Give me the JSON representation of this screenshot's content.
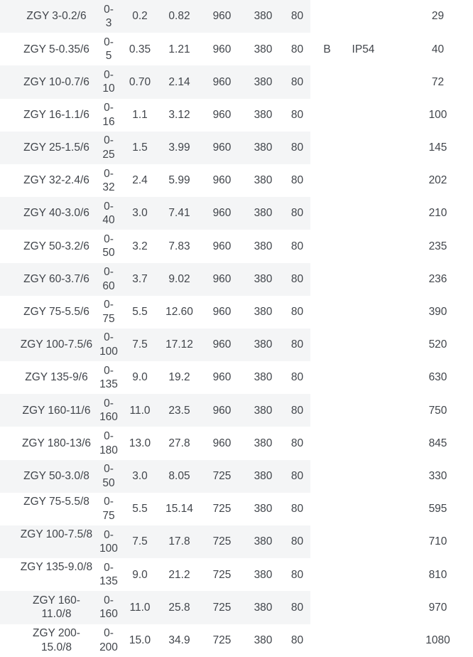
{
  "colors": {
    "stripe": "#f4f5f6",
    "text": "#41454b",
    "background": "#ffffff"
  },
  "table": {
    "rows": [
      {
        "model": "ZGY 3-0.2/6",
        "model_wrapped": false,
        "range": "0-3",
        "power": "0.2",
        "current": "0.82",
        "speed": "960",
        "voltage": "380",
        "noise": "80",
        "insulation": "",
        "protection": "",
        "weight": "29"
      },
      {
        "model": "ZGY 5-0.35/6",
        "model_wrapped": false,
        "range": "0-5",
        "power": "0.35",
        "current": "1.21",
        "speed": "960",
        "voltage": "380",
        "noise": "80",
        "insulation": "B",
        "protection": "IP54",
        "weight": "40"
      },
      {
        "model": "ZGY 10-0.7/6",
        "model_wrapped": false,
        "range": "0-10",
        "power": "0.70",
        "current": "2.14",
        "speed": "960",
        "voltage": "380",
        "noise": "80",
        "insulation": "",
        "protection": "",
        "weight": "72"
      },
      {
        "model": "ZGY 16-1.1/6",
        "model_wrapped": false,
        "range": "0-16",
        "power": "1.1",
        "current": "3.12",
        "speed": "960",
        "voltage": "380",
        "noise": "80",
        "insulation": "",
        "protection": "",
        "weight": "100"
      },
      {
        "model": "ZGY 25-1.5/6",
        "model_wrapped": false,
        "range": "0-25",
        "power": "1.5",
        "current": "3.99",
        "speed": "960",
        "voltage": "380",
        "noise": "80",
        "insulation": "",
        "protection": "",
        "weight": "145"
      },
      {
        "model": "ZGY 32-2.4/6",
        "model_wrapped": false,
        "range": "0-32",
        "power": "2.4",
        "current": "5.99",
        "speed": "960",
        "voltage": "380",
        "noise": "80",
        "insulation": "",
        "protection": "",
        "weight": "202"
      },
      {
        "model": "ZGY 40-3.0/6",
        "model_wrapped": false,
        "range": "0-40",
        "power": "3.0",
        "current": "7.41",
        "speed": "960",
        "voltage": "380",
        "noise": "80",
        "insulation": "",
        "protection": "",
        "weight": "210"
      },
      {
        "model": "ZGY 50-3.2/6",
        "model_wrapped": false,
        "range": "0-50",
        "power": "3.2",
        "current": "7.83",
        "speed": "960",
        "voltage": "380",
        "noise": "80",
        "insulation": "",
        "protection": "",
        "weight": "235"
      },
      {
        "model": "ZGY 60-3.7/6",
        "model_wrapped": false,
        "range": "0-60",
        "power": "3.7",
        "current": "9.02",
        "speed": "960",
        "voltage": "380",
        "noise": "80",
        "insulation": "",
        "protection": "",
        "weight": "236"
      },
      {
        "model": "ZGY 75-5.5/6",
        "model_wrapped": false,
        "range": "0-75",
        "power": "5.5",
        "current": "12.60",
        "speed": "960",
        "voltage": "380",
        "noise": "80",
        "insulation": "",
        "protection": "",
        "weight": "390"
      },
      {
        "model": "ZGY 100-7.5/6",
        "model_wrapped": false,
        "range": "0-100",
        "power": "7.5",
        "current": "17.12",
        "speed": "960",
        "voltage": "380",
        "noise": "80",
        "insulation": "",
        "protection": "",
        "weight": "520"
      },
      {
        "model": "ZGY 135-9/6",
        "model_wrapped": false,
        "range": "0-135",
        "power": "9.0",
        "current": "19.2",
        "speed": "960",
        "voltage": "380",
        "noise": "80",
        "insulation": "",
        "protection": "",
        "weight": "630"
      },
      {
        "model": "ZGY 160-11/6",
        "model_wrapped": false,
        "range": "0-160",
        "power": "11.0",
        "current": "23.5",
        "speed": "960",
        "voltage": "380",
        "noise": "80",
        "insulation": "",
        "protection": "",
        "weight": "750"
      },
      {
        "model": "ZGY 180-13/6",
        "model_wrapped": false,
        "range": "0-180",
        "power": "13.0",
        "current": "27.8",
        "speed": "960",
        "voltage": "380",
        "noise": "80",
        "insulation": "",
        "protection": "",
        "weight": "845"
      },
      {
        "model": "ZGY 50-3.0/8",
        "model_wrapped": false,
        "range": "0-50",
        "power": "3.0",
        "current": "8.05",
        "speed": "725",
        "voltage": "380",
        "noise": "80",
        "insulation": "",
        "protection": "",
        "weight": "330"
      },
      {
        "model": "ZGY 75-5.5/8",
        "model_wrapped": false,
        "range": "0-75",
        "power": "5.5",
        "current": "15.14",
        "speed": "725",
        "voltage": "380",
        "noise": "80",
        "insulation": "",
        "protection": "",
        "weight": "595"
      },
      {
        "model": "ZGY 100-7.5/8",
        "model_wrapped": false,
        "range": "0-100",
        "power": "7.5",
        "current": "17.8",
        "speed": "725",
        "voltage": "380",
        "noise": "80",
        "insulation": "",
        "protection": "",
        "weight": "710"
      },
      {
        "model": "ZGY 135-9.0/8",
        "model_wrapped": false,
        "range": "0-135",
        "power": "9.0",
        "current": "21.2",
        "speed": "725",
        "voltage": "380",
        "noise": "80",
        "insulation": "",
        "protection": "",
        "weight": "810"
      },
      {
        "model": "ZGY 160-11.0/8",
        "model_wrapped": true,
        "range": "0-160",
        "power": "11.0",
        "current": "25.8",
        "speed": "725",
        "voltage": "380",
        "noise": "80",
        "insulation": "",
        "protection": "",
        "weight": "970"
      },
      {
        "model": "ZGY 200-15.0/8",
        "model_wrapped": true,
        "range": "0-200",
        "power": "15.0",
        "current": "34.9",
        "speed": "725",
        "voltage": "380",
        "noise": "80",
        "insulation": "",
        "protection": "",
        "weight": "1080"
      }
    ]
  }
}
